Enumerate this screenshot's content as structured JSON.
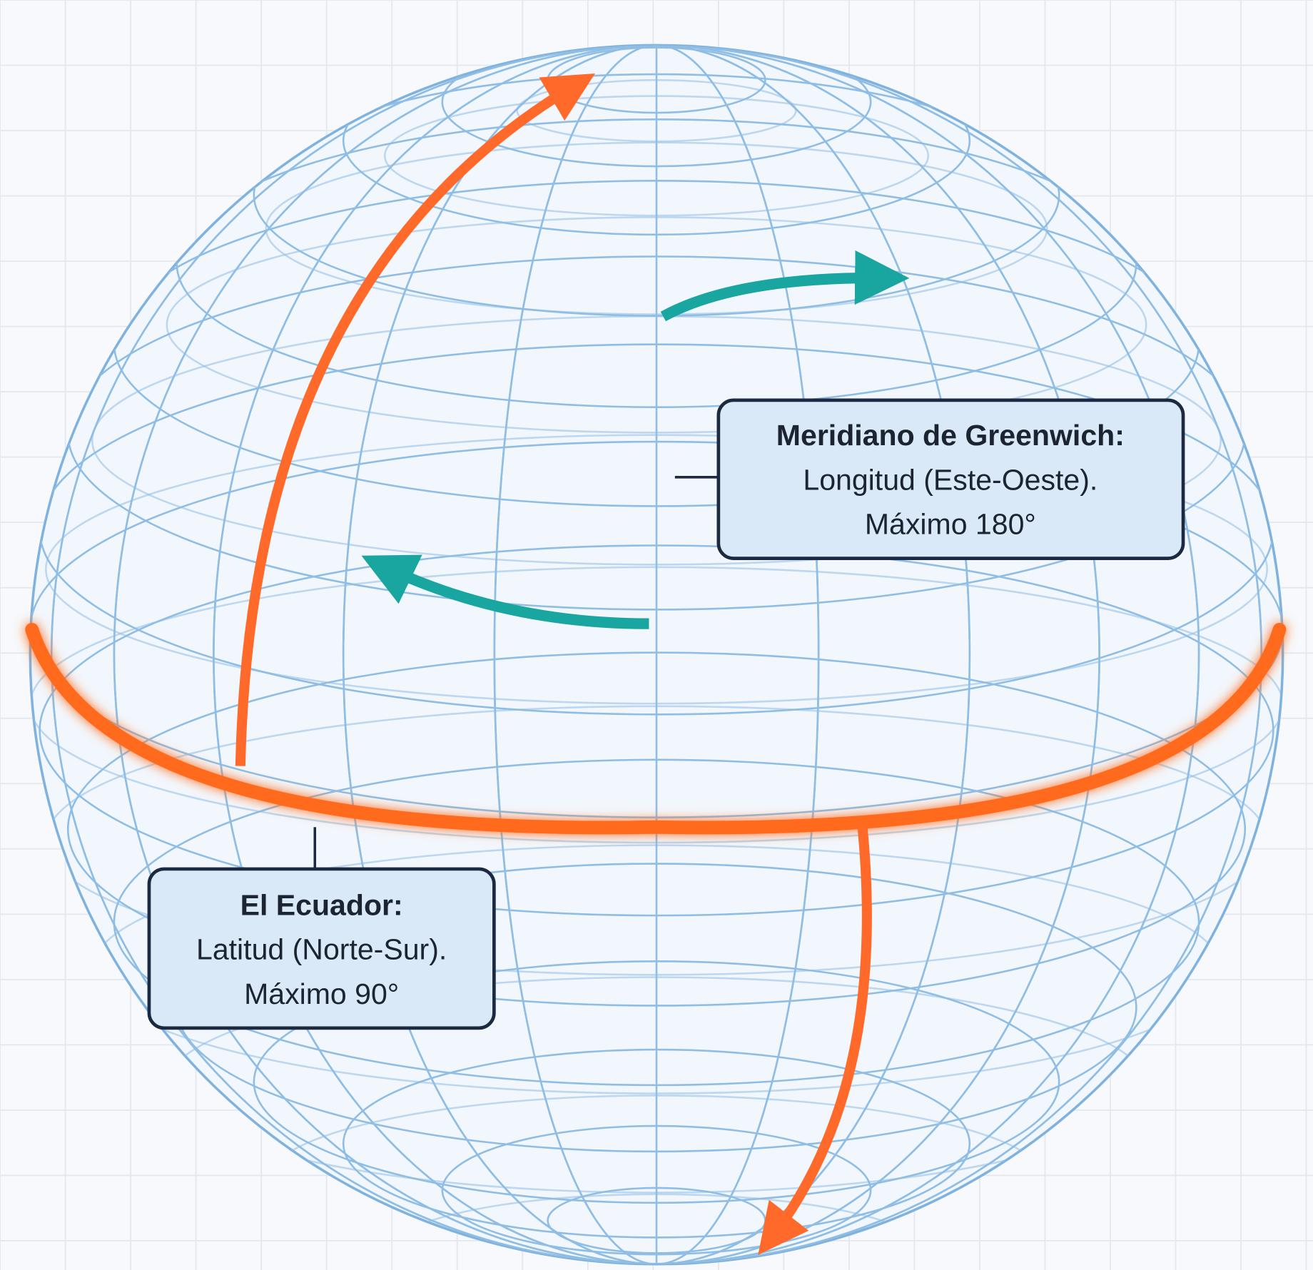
{
  "labels": [
    {
      "title": "Meridiano de Greenwich:",
      "lines": [
        "Longitud (Este-Oeste).",
        "Máximo 180°"
      ]
    },
    {
      "title": "El Ecuador:",
      "lines": [
        "Latitud (Norte-Sur).",
        "Máximo 90°"
      ]
    }
  ]
}
